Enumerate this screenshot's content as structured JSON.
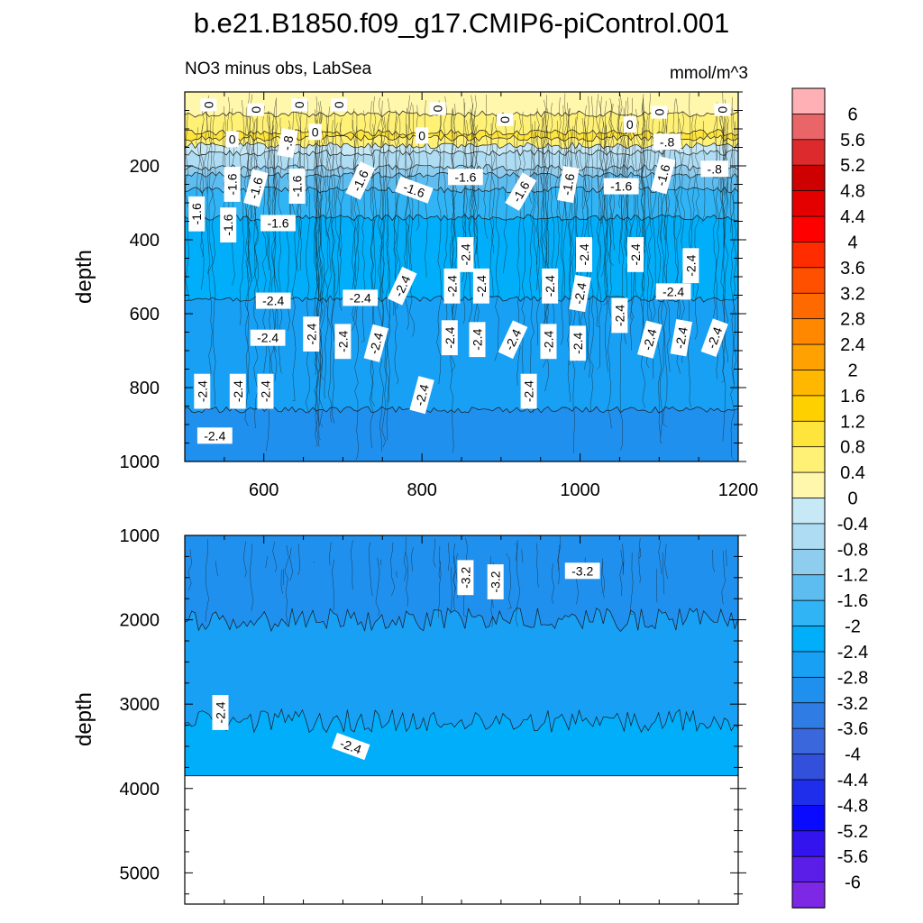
{
  "figure": {
    "title": "b.e21.B1850.f09_g17.CMIP6-piControl.001",
    "subtitle_left": "NO3 minus obs, LabSea",
    "subtitle_right": "mmol/m^3"
  },
  "colors": {
    "frame": "#000000",
    "contour_line": "#1a1a1a",
    "label_box": "#ffffff",
    "land_missing": "#ffffff"
  },
  "chart_data": [
    {
      "type": "heatmap",
      "panel": "upper",
      "xlabel": "",
      "ylabel": "depth",
      "xlim": [
        500,
        1200
      ],
      "ylim": [
        1000,
        0
      ],
      "x_ticks": [
        600,
        800,
        1000,
        1200
      ],
      "y_ticks": [
        200,
        400,
        600,
        800,
        1000
      ],
      "layers": [
        {
          "from": 0,
          "to": 60,
          "level_lo": 0,
          "level_hi": 0.4
        },
        {
          "from": 60,
          "to": 110,
          "level_lo": 0.4,
          "level_hi": 0.8
        },
        {
          "from": 110,
          "to": 125,
          "level_lo": 0.8,
          "level_hi": 1.2
        },
        {
          "from": 125,
          "to": 145,
          "level_lo": 0.4,
          "level_hi": 0.8
        },
        {
          "from": 145,
          "to": 165,
          "level_lo": -0.4,
          "level_hi": 0
        },
        {
          "from": 165,
          "to": 205,
          "level_lo": -0.8,
          "level_hi": -0.4
        },
        {
          "from": 205,
          "to": 225,
          "level_lo": -1.2,
          "level_hi": -0.8
        },
        {
          "from": 225,
          "to": 265,
          "level_lo": -1.6,
          "level_hi": -1.2
        },
        {
          "from": 265,
          "to": 340,
          "level_lo": -2,
          "level_hi": -1.6
        },
        {
          "from": 340,
          "to": 560,
          "level_lo": -2.4,
          "level_hi": -2
        },
        {
          "from": 560,
          "to": 860,
          "level_lo": -2.8,
          "level_hi": -2.4
        },
        {
          "from": 860,
          "to": 1000,
          "level_lo": -3.2,
          "level_hi": -2.8
        }
      ],
      "contour_labels": [
        {
          "text": "0",
          "x": 560,
          "y": 128,
          "rot": 0
        },
        {
          "text": "0",
          "x": 530,
          "y": 35,
          "rot": 90
        },
        {
          "text": "0",
          "x": 590,
          "y": 48,
          "rot": 90
        },
        {
          "text": "0",
          "x": 645,
          "y": 35,
          "rot": 90
        },
        {
          "text": "0",
          "x": 695,
          "y": 35,
          "rot": 90
        },
        {
          "text": "0",
          "x": 665,
          "y": 108,
          "rot": 0
        },
        {
          "text": "0",
          "x": 820,
          "y": 45,
          "rot": 90
        },
        {
          "text": "0",
          "x": 800,
          "y": 118,
          "rot": 0
        },
        {
          "text": "0",
          "x": 905,
          "y": 75,
          "rot": 90
        },
        {
          "text": "0",
          "x": 1063,
          "y": 88,
          "rot": 0
        },
        {
          "text": "0",
          "x": 1100,
          "y": 55,
          "rot": 90
        },
        {
          "text": "0",
          "x": 1180,
          "y": 48,
          "rot": 90
        },
        {
          "text": "-.8",
          "x": 630,
          "y": 138,
          "rot": 80
        },
        {
          "text": "-.8",
          "x": 1110,
          "y": 135,
          "rot": 0
        },
        {
          "text": "-.8",
          "x": 1170,
          "y": 208,
          "rot": 0
        },
        {
          "text": "-1.6",
          "x": 560,
          "y": 250,
          "rot": 90
        },
        {
          "text": "-1.6",
          "x": 590,
          "y": 260,
          "rot": 75
        },
        {
          "text": "-1.6",
          "x": 642,
          "y": 255,
          "rot": 90
        },
        {
          "text": "-1.6",
          "x": 722,
          "y": 240,
          "rot": 65
        },
        {
          "text": "-1.6",
          "x": 790,
          "y": 265,
          "rot": -20
        },
        {
          "text": "-1.6",
          "x": 855,
          "y": 230,
          "rot": 0
        },
        {
          "text": "-1.6",
          "x": 925,
          "y": 270,
          "rot": 60
        },
        {
          "text": "-1.6",
          "x": 985,
          "y": 250,
          "rot": 80
        },
        {
          "text": "-1.6",
          "x": 1052,
          "y": 255,
          "rot": 0
        },
        {
          "text": "-1.6",
          "x": 1105,
          "y": 225,
          "rot": 75
        },
        {
          "text": "-1.6",
          "x": 515,
          "y": 330,
          "rot": 90
        },
        {
          "text": "-1.6",
          "x": 555,
          "y": 360,
          "rot": 90
        },
        {
          "text": "-1.6",
          "x": 618,
          "y": 355,
          "rot": 0
        },
        {
          "text": "-2.4",
          "x": 855,
          "y": 440,
          "rot": 90
        },
        {
          "text": "-2.4",
          "x": 1005,
          "y": 440,
          "rot": 90
        },
        {
          "text": "-2.4",
          "x": 1070,
          "y": 440,
          "rot": 90
        },
        {
          "text": "-2.4",
          "x": 1140,
          "y": 470,
          "rot": 90
        },
        {
          "text": "-2.4",
          "x": 612,
          "y": 565,
          "rot": 0
        },
        {
          "text": "-2.4",
          "x": 722,
          "y": 557,
          "rot": 0
        },
        {
          "text": "-2.4",
          "x": 775,
          "y": 525,
          "rot": 65
        },
        {
          "text": "-2.4",
          "x": 838,
          "y": 525,
          "rot": 90
        },
        {
          "text": "-2.4",
          "x": 875,
          "y": 525,
          "rot": 90
        },
        {
          "text": "-2.4",
          "x": 962,
          "y": 525,
          "rot": 90
        },
        {
          "text": "-2.4",
          "x": 1000,
          "y": 545,
          "rot": 80
        },
        {
          "text": "-2.4",
          "x": 1118,
          "y": 540,
          "rot": 0
        },
        {
          "text": "-2.4",
          "x": 1050,
          "y": 605,
          "rot": 90
        },
        {
          "text": "-2.4",
          "x": 605,
          "y": 665,
          "rot": 0
        },
        {
          "text": "-2.4",
          "x": 660,
          "y": 655,
          "rot": 90
        },
        {
          "text": "-2.4",
          "x": 700,
          "y": 675,
          "rot": 90
        },
        {
          "text": "-2.4",
          "x": 742,
          "y": 680,
          "rot": 75
        },
        {
          "text": "-2.4",
          "x": 835,
          "y": 665,
          "rot": 90
        },
        {
          "text": "-2.4",
          "x": 870,
          "y": 670,
          "rot": 90
        },
        {
          "text": "-2.4",
          "x": 915,
          "y": 670,
          "rot": 65
        },
        {
          "text": "-2.4",
          "x": 960,
          "y": 675,
          "rot": 90
        },
        {
          "text": "-2.4",
          "x": 997,
          "y": 680,
          "rot": 90
        },
        {
          "text": "-2.4",
          "x": 1088,
          "y": 670,
          "rot": 75
        },
        {
          "text": "-2.4",
          "x": 1128,
          "y": 665,
          "rot": 80
        },
        {
          "text": "-2.4",
          "x": 1170,
          "y": 665,
          "rot": 70
        },
        {
          "text": "-2.4",
          "x": 522,
          "y": 810,
          "rot": 90
        },
        {
          "text": "-2.4",
          "x": 567,
          "y": 810,
          "rot": 90
        },
        {
          "text": "-2.4",
          "x": 602,
          "y": 810,
          "rot": 90
        },
        {
          "text": "-2.4",
          "x": 800,
          "y": 820,
          "rot": 75
        },
        {
          "text": "-2.4",
          "x": 935,
          "y": 810,
          "rot": 90
        },
        {
          "text": "-2.4",
          "x": 538,
          "y": 930,
          "rot": 0
        }
      ]
    },
    {
      "type": "heatmap",
      "panel": "lower",
      "xlabel": "",
      "ylabel": "depth",
      "xlim": [
        500,
        1200
      ],
      "ylim": [
        5370,
        1000
      ],
      "x_ticks": [
        600,
        800,
        1000,
        1200
      ],
      "y_ticks": [
        1000,
        2000,
        3000,
        4000,
        5000
      ],
      "bottom_of_data": 3850,
      "layers": [
        {
          "from": 1000,
          "to": 2000,
          "level_lo": -3.2,
          "level_hi": -2.8
        },
        {
          "from": 2000,
          "to": 3200,
          "level_lo": -2.8,
          "level_hi": -2.4
        },
        {
          "from": 3200,
          "to": 3850,
          "level_lo": -2.4,
          "level_hi": -2
        }
      ],
      "contour_labels": [
        {
          "text": "-3.2",
          "x": 855,
          "y": 1500,
          "rot": 90
        },
        {
          "text": "-3.2",
          "x": 893,
          "y": 1550,
          "rot": 90
        },
        {
          "text": "-3.2",
          "x": 1003,
          "y": 1420,
          "rot": 0
        },
        {
          "text": "-2.4",
          "x": 545,
          "y": 3100,
          "rot": 90
        },
        {
          "text": "-2.4",
          "x": 710,
          "y": 3500,
          "rot": -20
        }
      ]
    }
  ],
  "colorbar": {
    "levels": [
      "6",
      "5.6",
      "5.2",
      "4.8",
      "4.4",
      "4",
      "3.6",
      "3.2",
      "2.8",
      "2.4",
      "2",
      "1.6",
      "1.2",
      "0.8",
      "0.4",
      "0",
      "-0.4",
      "-0.8",
      "-1.2",
      "-1.6",
      "-2",
      "-2.4",
      "-2.8",
      "-3.2",
      "-3.6",
      "-4",
      "-4.4",
      "-4.8",
      "-5.2",
      "-5.6",
      "-6"
    ],
    "colors": [
      "#ffb0b4",
      "#ea6568",
      "#dc2a2d",
      "#cf0000",
      "#e50000",
      "#ff0000",
      "#ff2c00",
      "#ff5000",
      "#ff6a00",
      "#ff8800",
      "#ffa100",
      "#ffb700",
      "#ffd000",
      "#ffe43c",
      "#fff176",
      "#fff7ab",
      "#c7e9f6",
      "#aedcf2",
      "#8fcdee",
      "#5ebdf0",
      "#30b4f5",
      "#00aefa",
      "#18a0f4",
      "#2090ee",
      "#2f7ce4",
      "#3a68dc",
      "#3250dc",
      "#1f2eea",
      "#0a0aff",
      "#3314ee",
      "#5a1ee8",
      "#7c28e4"
    ]
  }
}
